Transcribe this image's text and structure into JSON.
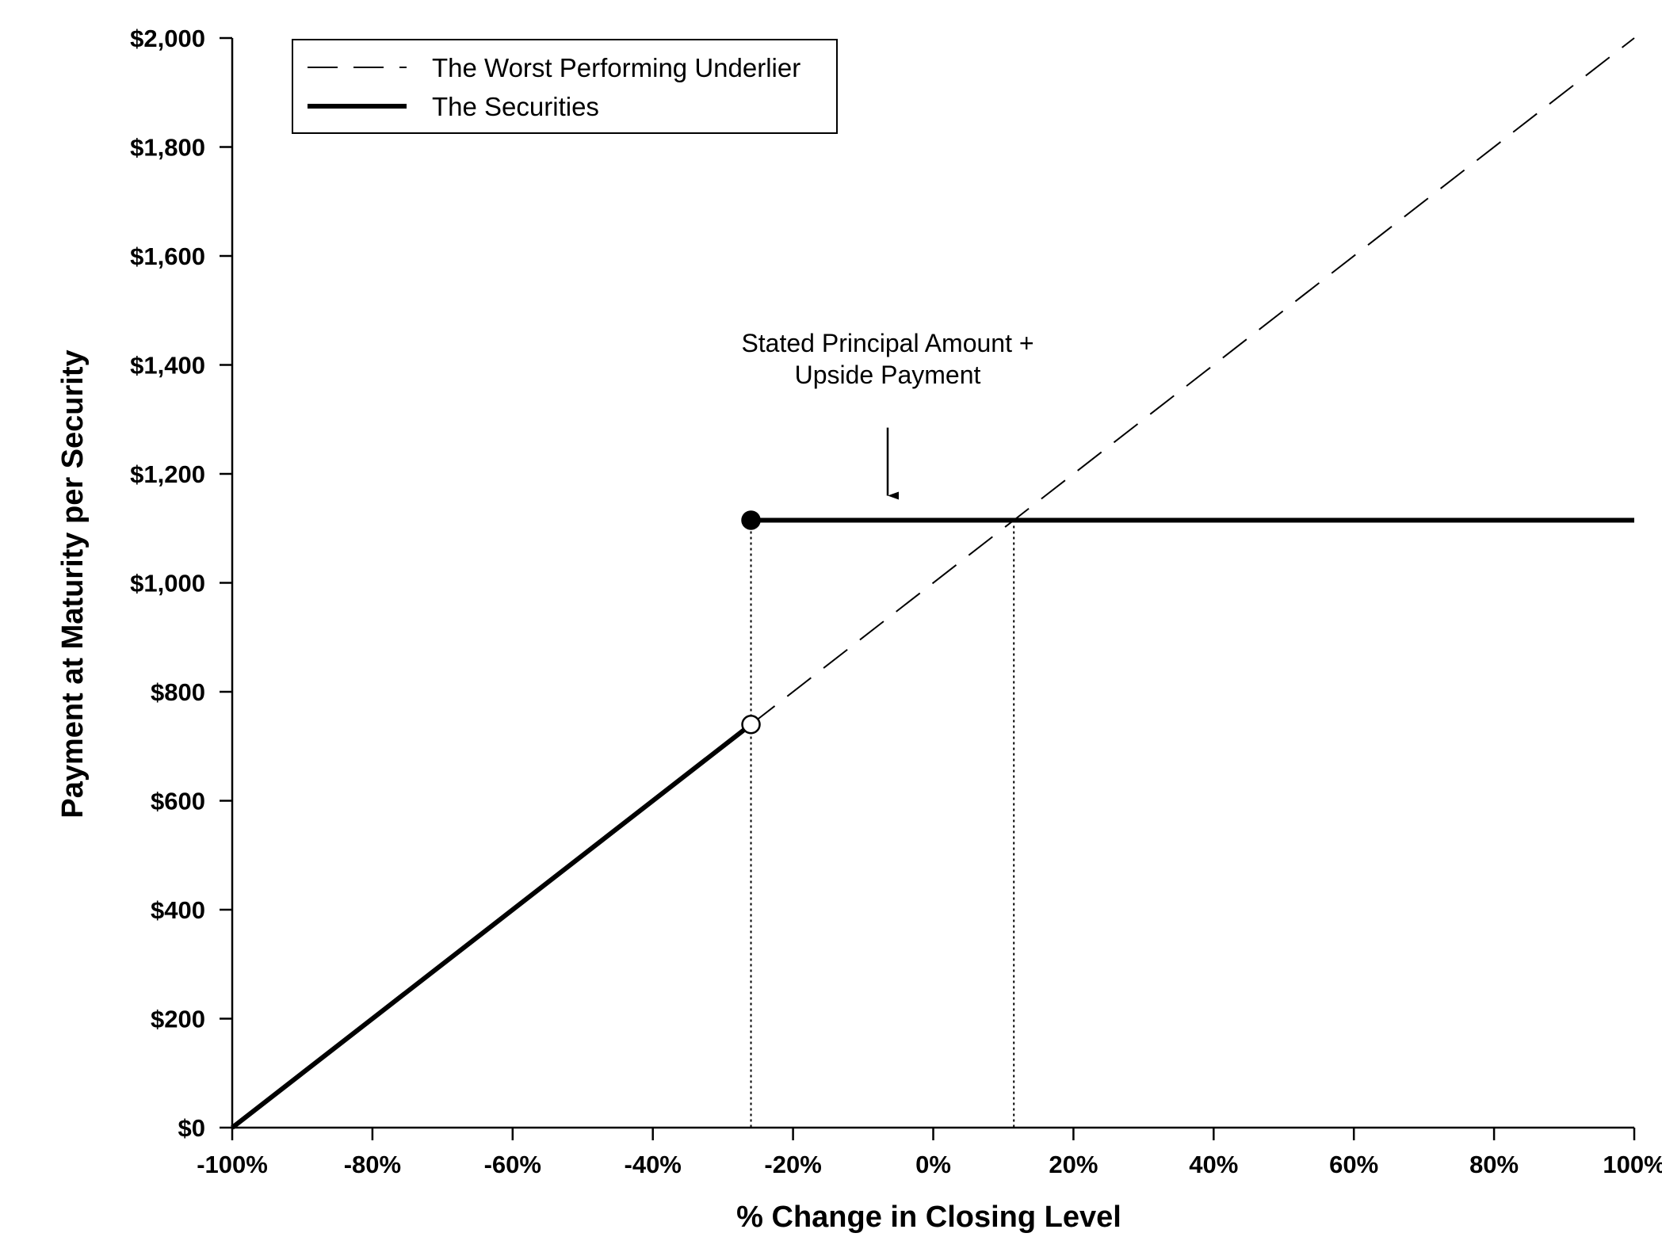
{
  "chart_data": {
    "type": "line",
    "xlabel": "% Change in Closing Level",
    "ylabel": "Payment at Maturity per Security",
    "xlim": [
      -100,
      100
    ],
    "ylim": [
      0,
      2000
    ],
    "x_ticks": [
      "-100%",
      "-80%",
      "-60%",
      "-40%",
      "-20%",
      "0%",
      "20%",
      "40%",
      "60%",
      "80%",
      "100%"
    ],
    "x_tick_values": [
      -100,
      -80,
      -60,
      -40,
      -20,
      0,
      20,
      40,
      60,
      80,
      100
    ],
    "y_ticks": [
      "$0",
      "$200",
      "$400",
      "$600",
      "$800",
      "$1,000",
      "$1,200",
      "$1,400",
      "$1,600",
      "$1,800",
      "$2,000"
    ],
    "y_tick_values": [
      0,
      200,
      400,
      600,
      800,
      1000,
      1200,
      1400,
      1600,
      1800,
      2000
    ],
    "grid": false,
    "legend_position": "top-left",
    "series": [
      {
        "name": "The Worst Performing Underlier",
        "style": "dashed",
        "color": "#000000",
        "x": [
          -26,
          100
        ],
        "y": [
          740,
          2000
        ]
      },
      {
        "name": "The Securities",
        "style": "solid-thick",
        "color": "#000000",
        "segments": [
          {
            "x": [
              -100,
              -26
            ],
            "y": [
              0,
              740
            ]
          },
          {
            "x": [
              -26,
              100
            ],
            "y": [
              1115,
              1115
            ]
          }
        ]
      }
    ],
    "markers": [
      {
        "x": -26,
        "y": 1115,
        "fill": "filled"
      },
      {
        "x": -26,
        "y": 740,
        "fill": "open"
      }
    ],
    "reference_lines": [
      {
        "x": -26,
        "y_top": 1115
      },
      {
        "x": 11.5,
        "y_top": 1115
      }
    ],
    "annotations": [
      {
        "lines": [
          "Stated Principal Amount +",
          "Upside Payment"
        ],
        "arrow_to": {
          "x": -6.5,
          "y": 1160
        },
        "arrow_from": {
          "x": -6.5,
          "y": 1285
        }
      }
    ]
  }
}
